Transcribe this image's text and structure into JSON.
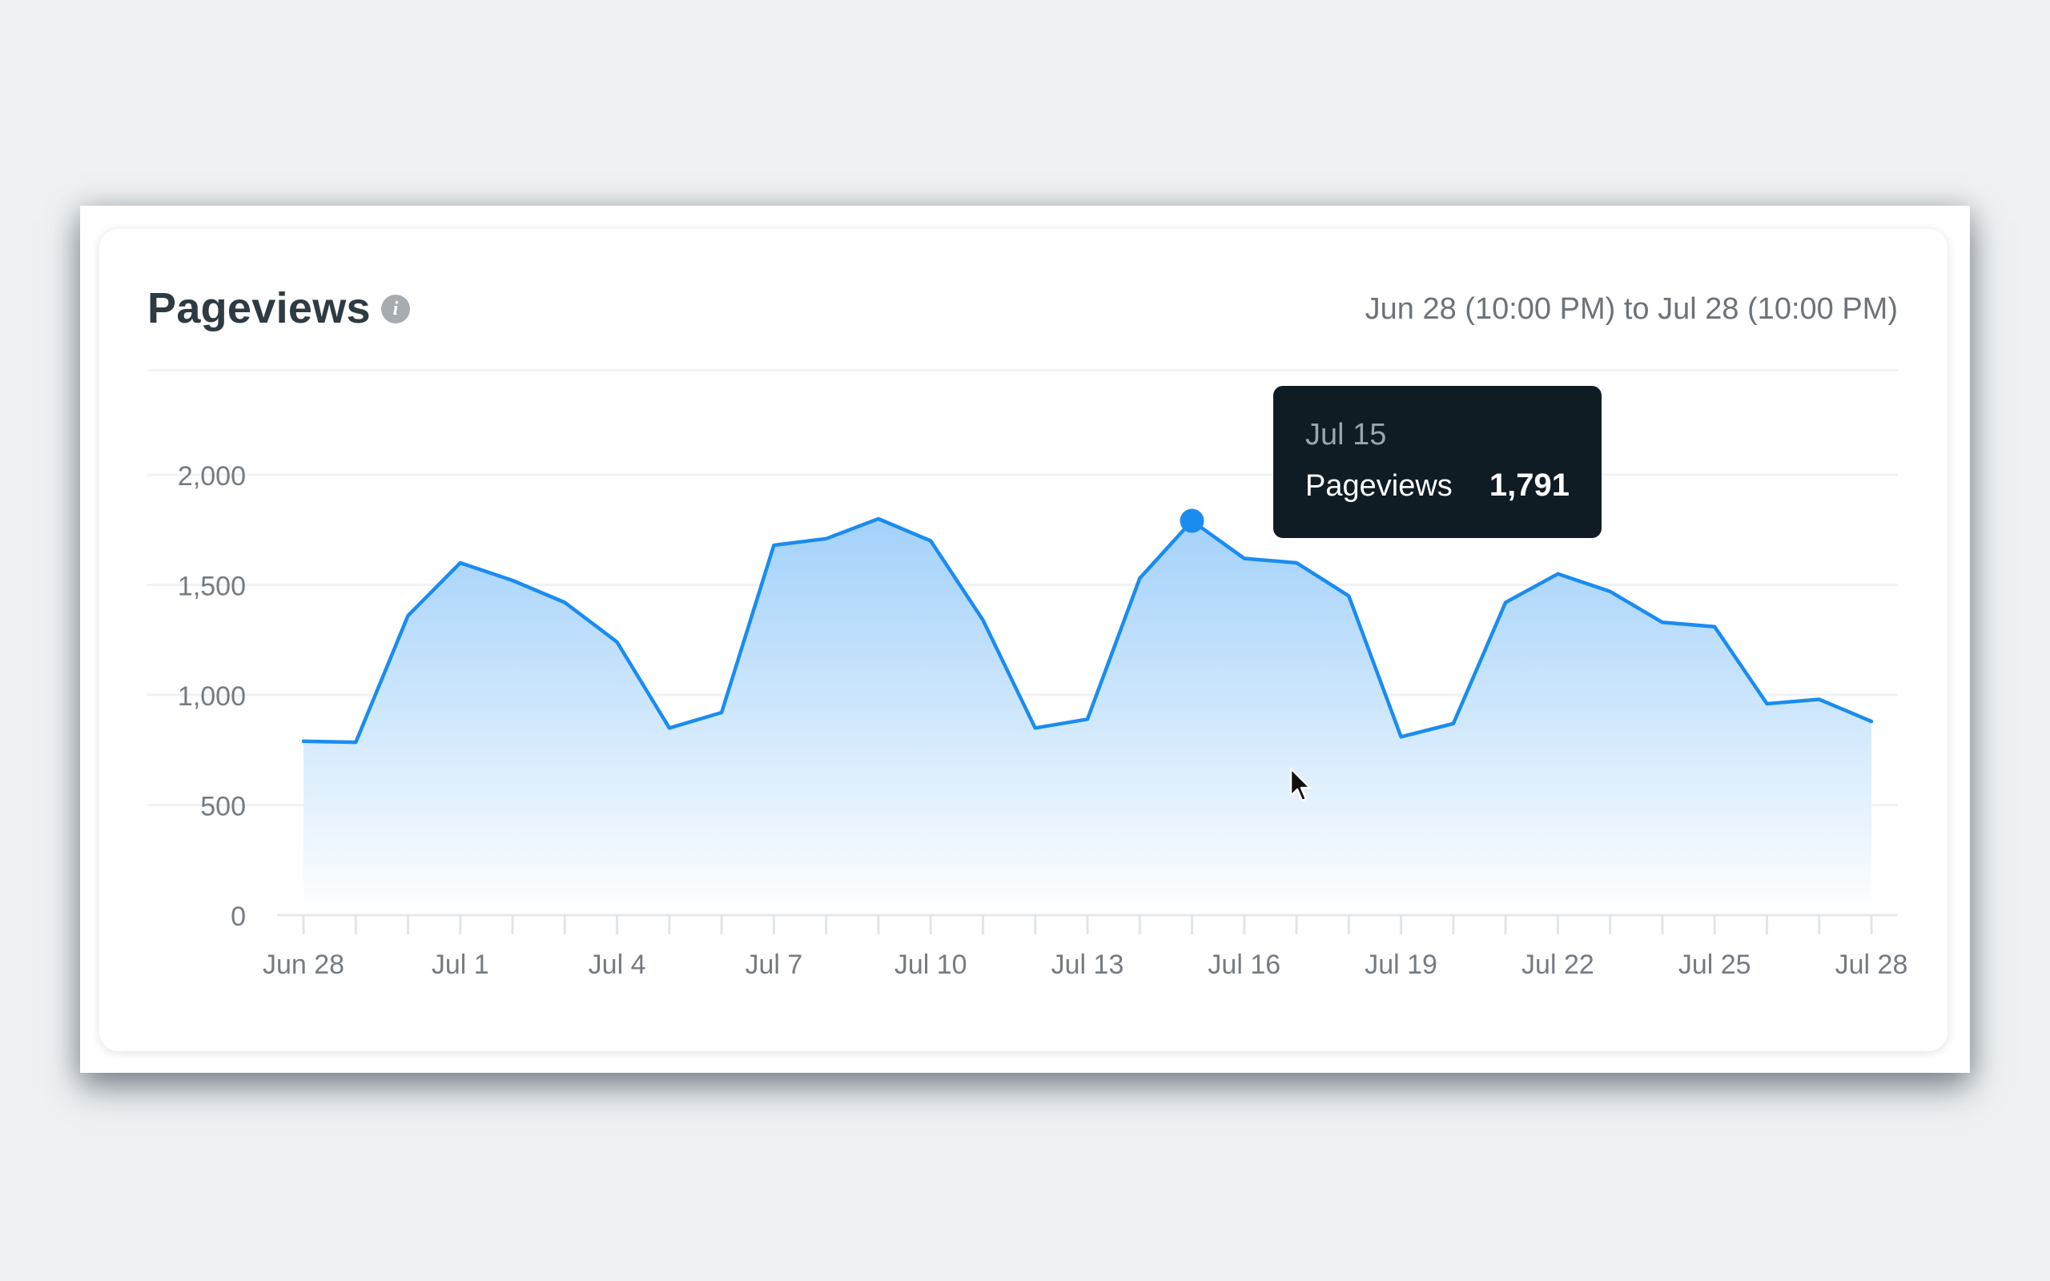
{
  "card": {
    "title": "Pageviews",
    "info_icon": "info-icon",
    "date_range": "Jun 28 (10:00 PM) to Jul 28 (10:00 PM)"
  },
  "tooltip": {
    "date": "Jul 15",
    "label": "Pageviews",
    "value": "1,791"
  },
  "colors": {
    "line": "#1a8cf0",
    "fill_top": "#a8d3fb",
    "fill_bottom": "#ffffff",
    "tooltip_bg": "#0f1c23",
    "axis_text": "#757b80"
  },
  "chart_data": {
    "type": "area",
    "title": "Pageviews",
    "x": [
      "Jun 28",
      "Jun 29",
      "Jun 30",
      "Jul 1",
      "Jul 2",
      "Jul 3",
      "Jul 4",
      "Jul 5",
      "Jul 6",
      "Jul 7",
      "Jul 8",
      "Jul 9",
      "Jul 10",
      "Jul 11",
      "Jul 12",
      "Jul 13",
      "Jul 14",
      "Jul 15",
      "Jul 16",
      "Jul 17",
      "Jul 18",
      "Jul 19",
      "Jul 20",
      "Jul 21",
      "Jul 22",
      "Jul 23",
      "Jul 24",
      "Jul 25",
      "Jul 26",
      "Jul 27",
      "Jul 28"
    ],
    "series": [
      {
        "name": "Pageviews",
        "values": [
          790,
          785,
          1360,
          1600,
          1520,
          1420,
          1240,
          850,
          920,
          1680,
          1710,
          1800,
          1700,
          1340,
          850,
          890,
          1530,
          1791,
          1620,
          1600,
          1450,
          810,
          870,
          1420,
          1550,
          1470,
          1330,
          1310,
          960,
          980,
          880
        ]
      }
    ],
    "xticklabels": [
      "Jun 28",
      "Jul 1",
      "Jul 4",
      "Jul 7",
      "Jul 10",
      "Jul 13",
      "Jul 16",
      "Jul 19",
      "Jul 22",
      "Jul 25",
      "Jul 28"
    ],
    "ytickvalues": [
      0,
      500,
      1000,
      1500,
      2000
    ],
    "yticklabels": [
      "0",
      "500",
      "1,000",
      "1,500",
      "2,000"
    ],
    "ylim": [
      0,
      2000
    ],
    "xlabel": "",
    "ylabel": "",
    "grid": true,
    "highlighted_point": "Jul 15"
  }
}
